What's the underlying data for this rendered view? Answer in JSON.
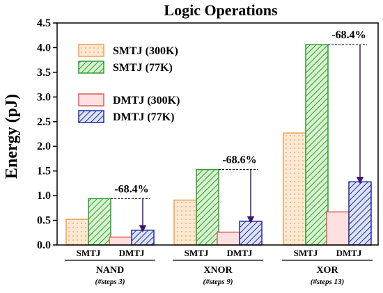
{
  "chart_data": {
    "type": "bar",
    "title": "Logic Operations",
    "xlabel": "",
    "ylabel": "Energy (pJ)",
    "ylim": [
      0,
      4.5
    ],
    "yticks": [
      "0.0",
      "0.5",
      "1.0",
      "1.5",
      "2.0",
      "2.5",
      "3.0",
      "3.5",
      "4.0",
      "4.5"
    ],
    "grid": false,
    "legend_position": "top-left",
    "groups": [
      {
        "label": "NAND",
        "note": "(#steps 3)",
        "sublabels": [
          "SMTJ",
          "DMTJ"
        ],
        "annotation": "-68.4%"
      },
      {
        "label": "XNOR",
        "note": "(#steps 9)",
        "sublabels": [
          "SMTJ",
          "DMTJ"
        ],
        "annotation": "-68.6%"
      },
      {
        "label": "XOR",
        "note": "(#steps 13)",
        "sublabels": [
          "SMTJ",
          "DMTJ"
        ],
        "annotation": "-68.4%"
      }
    ],
    "series": [
      {
        "name": "SMTJ (300K)",
        "values": [
          0.52,
          0.91,
          2.27
        ],
        "color": "#f0a050",
        "fill": "#fde8d4",
        "pattern": "dots"
      },
      {
        "name": "SMTJ (77K)",
        "values": [
          0.94,
          1.53,
          4.06
        ],
        "color": "#2e9e2e",
        "fill": "#c8ecc0",
        "pattern": "hatch"
      },
      {
        "name": "DMTJ (300K)",
        "values": [
          0.16,
          0.26,
          0.67
        ],
        "color": "#e05a5a",
        "fill": "#fde0e0",
        "pattern": "none"
      },
      {
        "name": "DMTJ (77K)",
        "values": [
          0.3,
          0.48,
          1.28
        ],
        "color": "#1f2f9e",
        "fill": "#c8d0f4",
        "pattern": "hatch"
      }
    ],
    "arrow_color": "#3a1a6e"
  }
}
